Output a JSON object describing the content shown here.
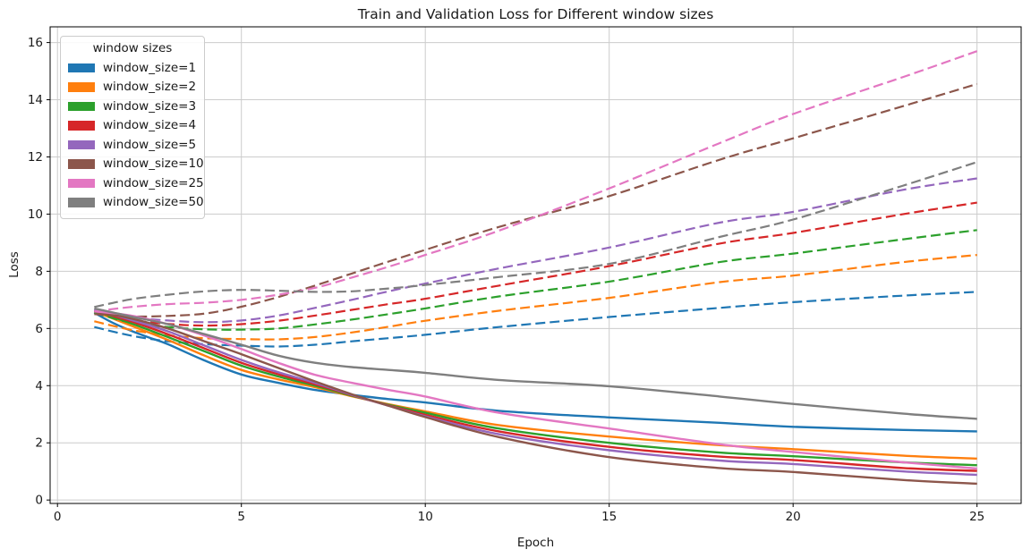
{
  "chart_data": {
    "type": "line",
    "title": "Train and Validation Loss for Different window sizes",
    "xlabel": "Epoch",
    "ylabel": "Loss",
    "xlim": [
      -0.2,
      26.2
    ],
    "ylim": [
      -0.12,
      16.55
    ],
    "xticks": [
      0,
      5,
      10,
      15,
      20,
      25
    ],
    "yticks": [
      0,
      2,
      4,
      6,
      8,
      10,
      12,
      14,
      16
    ],
    "grid": true,
    "grid_color": "#cccccc",
    "legend": {
      "title": "window sizes",
      "position": "upper left",
      "entries": [
        {
          "label": "window_size=1",
          "color": "#1f77b4"
        },
        {
          "label": "window_size=2",
          "color": "#ff7f0e"
        },
        {
          "label": "window_size=3",
          "color": "#2ca02c"
        },
        {
          "label": "window_size=4",
          "color": "#d62728"
        },
        {
          "label": "window_size=5",
          "color": "#9467bd"
        },
        {
          "label": "window_size=10",
          "color": "#8c564b"
        },
        {
          "label": "window_size=25",
          "color": "#e377c2"
        },
        {
          "label": "window_size=50",
          "color": "#7f7f7f"
        }
      ]
    },
    "line_styles": {
      "train": "solid",
      "validation": "dashed"
    },
    "series": [
      {
        "label": "window_size=1",
        "window_size": 1,
        "color": "#1f77b4",
        "train": [
          [
            1,
            6.55
          ],
          [
            1.5,
            6.2
          ],
          [
            2,
            5.92
          ],
          [
            2.5,
            5.68
          ],
          [
            3,
            5.45
          ],
          [
            4,
            4.88
          ],
          [
            5,
            4.39
          ],
          [
            6,
            4.1
          ],
          [
            7,
            3.85
          ],
          [
            8,
            3.68
          ],
          [
            9,
            3.53
          ],
          [
            10,
            3.41
          ],
          [
            12,
            3.12
          ],
          [
            15,
            2.89
          ],
          [
            18,
            2.7
          ],
          [
            20,
            2.56
          ],
          [
            23,
            2.45
          ],
          [
            25,
            2.4
          ]
        ],
        "validation": [
          [
            1,
            6.05
          ],
          [
            2,
            5.75
          ],
          [
            3,
            5.55
          ],
          [
            4,
            5.45
          ],
          [
            5,
            5.4
          ],
          [
            6,
            5.37
          ],
          [
            7,
            5.43
          ],
          [
            8,
            5.55
          ],
          [
            9,
            5.66
          ],
          [
            10,
            5.78
          ],
          [
            12,
            6.05
          ],
          [
            15,
            6.4
          ],
          [
            18,
            6.72
          ],
          [
            20,
            6.92
          ],
          [
            23,
            7.15
          ],
          [
            25,
            7.28
          ]
        ]
      },
      {
        "label": "window_size=2",
        "window_size": 2,
        "color": "#ff7f0e",
        "train": [
          [
            1,
            6.6
          ],
          [
            1.5,
            6.35
          ],
          [
            2,
            6.1
          ],
          [
            3,
            5.6
          ],
          [
            4,
            5.05
          ],
          [
            5,
            4.55
          ],
          [
            6,
            4.22
          ],
          [
            7,
            3.95
          ],
          [
            8,
            3.63
          ],
          [
            9,
            3.35
          ],
          [
            10,
            3.1
          ],
          [
            12,
            2.62
          ],
          [
            15,
            2.22
          ],
          [
            18,
            1.92
          ],
          [
            20,
            1.78
          ],
          [
            23,
            1.55
          ],
          [
            25,
            1.45
          ]
        ],
        "validation": [
          [
            1,
            6.25
          ],
          [
            2,
            5.95
          ],
          [
            3,
            5.76
          ],
          [
            4,
            5.66
          ],
          [
            5,
            5.63
          ],
          [
            6,
            5.62
          ],
          [
            7,
            5.7
          ],
          [
            8,
            5.86
          ],
          [
            9,
            6.06
          ],
          [
            10,
            6.27
          ],
          [
            12,
            6.62
          ],
          [
            15,
            7.07
          ],
          [
            18,
            7.62
          ],
          [
            20,
            7.85
          ],
          [
            23,
            8.32
          ],
          [
            25,
            8.57
          ]
        ]
      },
      {
        "label": "window_size=3",
        "window_size": 3,
        "color": "#2ca02c",
        "train": [
          [
            1,
            6.62
          ],
          [
            2,
            6.18
          ],
          [
            3,
            5.7
          ],
          [
            4,
            5.2
          ],
          [
            5,
            4.7
          ],
          [
            6,
            4.32
          ],
          [
            7,
            4.0
          ],
          [
            8,
            3.65
          ],
          [
            9,
            3.33
          ],
          [
            10,
            3.05
          ],
          [
            12,
            2.5
          ],
          [
            15,
            2.0
          ],
          [
            18,
            1.66
          ],
          [
            20,
            1.53
          ],
          [
            23,
            1.32
          ],
          [
            25,
            1.22
          ]
        ],
        "validation": [
          [
            1,
            6.55
          ],
          [
            2,
            6.2
          ],
          [
            3,
            6.05
          ],
          [
            4,
            5.97
          ],
          [
            5,
            5.96
          ],
          [
            6,
            6.0
          ],
          [
            7,
            6.14
          ],
          [
            8,
            6.31
          ],
          [
            9,
            6.5
          ],
          [
            10,
            6.7
          ],
          [
            12,
            7.12
          ],
          [
            15,
            7.64
          ],
          [
            18,
            8.32
          ],
          [
            20,
            8.62
          ],
          [
            23,
            9.12
          ],
          [
            25,
            9.44
          ]
        ]
      },
      {
        "label": "window_size=4",
        "window_size": 4,
        "color": "#d62728",
        "train": [
          [
            1,
            6.62
          ],
          [
            2,
            6.25
          ],
          [
            3,
            5.8
          ],
          [
            4,
            5.3
          ],
          [
            5,
            4.8
          ],
          [
            6,
            4.4
          ],
          [
            7,
            4.05
          ],
          [
            8,
            3.67
          ],
          [
            9,
            3.31
          ],
          [
            10,
            2.98
          ],
          [
            12,
            2.4
          ],
          [
            15,
            1.86
          ],
          [
            18,
            1.52
          ],
          [
            20,
            1.4
          ],
          [
            23,
            1.12
          ],
          [
            25,
            1.02
          ]
        ],
        "validation": [
          [
            1,
            6.6
          ],
          [
            2,
            6.3
          ],
          [
            3,
            6.16
          ],
          [
            4,
            6.1
          ],
          [
            5,
            6.15
          ],
          [
            6,
            6.27
          ],
          [
            7,
            6.45
          ],
          [
            8,
            6.65
          ],
          [
            9,
            6.85
          ],
          [
            10,
            7.04
          ],
          [
            12,
            7.5
          ],
          [
            15,
            8.18
          ],
          [
            18,
            8.97
          ],
          [
            20,
            9.34
          ],
          [
            23,
            10.0
          ],
          [
            25,
            10.4
          ]
        ]
      },
      {
        "label": "window_size=5",
        "window_size": 5,
        "color": "#9467bd",
        "train": [
          [
            1,
            6.65
          ],
          [
            2,
            6.3
          ],
          [
            3,
            5.9
          ],
          [
            4,
            5.4
          ],
          [
            5,
            4.9
          ],
          [
            6,
            4.47
          ],
          [
            7,
            4.1
          ],
          [
            8,
            3.68
          ],
          [
            9,
            3.3
          ],
          [
            10,
            2.93
          ],
          [
            12,
            2.3
          ],
          [
            15,
            1.74
          ],
          [
            18,
            1.38
          ],
          [
            20,
            1.26
          ],
          [
            23,
            1.0
          ],
          [
            25,
            0.88
          ]
        ],
        "validation": [
          [
            1,
            6.65
          ],
          [
            2,
            6.4
          ],
          [
            3,
            6.28
          ],
          [
            4,
            6.22
          ],
          [
            5,
            6.28
          ],
          [
            6,
            6.45
          ],
          [
            7,
            6.72
          ],
          [
            8,
            7.0
          ],
          [
            9,
            7.3
          ],
          [
            10,
            7.57
          ],
          [
            12,
            8.1
          ],
          [
            15,
            8.83
          ],
          [
            18,
            9.7
          ],
          [
            20,
            10.08
          ],
          [
            23,
            10.85
          ],
          [
            25,
            11.25
          ]
        ]
      },
      {
        "label": "window_size=10",
        "window_size": 10,
        "color": "#8c564b",
        "train": [
          [
            1,
            6.6
          ],
          [
            2,
            6.35
          ],
          [
            3,
            6.0
          ],
          [
            4,
            5.55
          ],
          [
            5,
            5.1
          ],
          [
            6,
            4.62
          ],
          [
            7,
            4.15
          ],
          [
            8,
            3.7
          ],
          [
            9,
            3.3
          ],
          [
            10,
            2.9
          ],
          [
            12,
            2.2
          ],
          [
            15,
            1.5
          ],
          [
            18,
            1.12
          ],
          [
            20,
            0.98
          ],
          [
            23,
            0.7
          ],
          [
            25,
            0.57
          ]
        ],
        "validation": [
          [
            1,
            6.5
          ],
          [
            2,
            6.42
          ],
          [
            3,
            6.44
          ],
          [
            4,
            6.52
          ],
          [
            5,
            6.76
          ],
          [
            6,
            7.1
          ],
          [
            7,
            7.5
          ],
          [
            8,
            7.92
          ],
          [
            9,
            8.34
          ],
          [
            10,
            8.75
          ],
          [
            12,
            9.55
          ],
          [
            15,
            10.63
          ],
          [
            18,
            11.9
          ],
          [
            20,
            12.65
          ],
          [
            23,
            13.78
          ],
          [
            25,
            14.55
          ]
        ]
      },
      {
        "label": "window_size=25",
        "window_size": 25,
        "color": "#e377c2",
        "train": [
          [
            1,
            6.6
          ],
          [
            2,
            6.45
          ],
          [
            3,
            6.15
          ],
          [
            4,
            5.75
          ],
          [
            5,
            5.28
          ],
          [
            6,
            4.8
          ],
          [
            7,
            4.38
          ],
          [
            8,
            4.1
          ],
          [
            9,
            3.85
          ],
          [
            10,
            3.62
          ],
          [
            12,
            3.05
          ],
          [
            15,
            2.5
          ],
          [
            18,
            1.95
          ],
          [
            20,
            1.68
          ],
          [
            23,
            1.32
          ],
          [
            25,
            1.1
          ]
        ],
        "validation": [
          [
            1,
            6.6
          ],
          [
            2,
            6.75
          ],
          [
            3,
            6.85
          ],
          [
            4,
            6.9
          ],
          [
            5,
            7.0
          ],
          [
            6,
            7.18
          ],
          [
            7,
            7.42
          ],
          [
            8,
            7.78
          ],
          [
            9,
            8.16
          ],
          [
            10,
            8.57
          ],
          [
            12,
            9.42
          ],
          [
            15,
            10.9
          ],
          [
            18,
            12.48
          ],
          [
            20,
            13.5
          ],
          [
            23,
            14.8
          ],
          [
            25,
            15.7
          ]
        ]
      },
      {
        "label": "window_size=50",
        "window_size": 50,
        "color": "#7f7f7f",
        "train": [
          [
            1,
            6.7
          ],
          [
            2,
            6.42
          ],
          [
            3,
            6.15
          ],
          [
            4,
            5.8
          ],
          [
            5,
            5.43
          ],
          [
            6,
            5.05
          ],
          [
            7,
            4.8
          ],
          [
            8,
            4.65
          ],
          [
            9,
            4.55
          ],
          [
            10,
            4.45
          ],
          [
            12,
            4.2
          ],
          [
            15,
            3.98
          ],
          [
            18,
            3.62
          ],
          [
            20,
            3.36
          ],
          [
            23,
            3.02
          ],
          [
            25,
            2.84
          ]
        ],
        "validation": [
          [
            1,
            6.75
          ],
          [
            2,
            7.02
          ],
          [
            3,
            7.18
          ],
          [
            4,
            7.3
          ],
          [
            5,
            7.35
          ],
          [
            6,
            7.32
          ],
          [
            7,
            7.28
          ],
          [
            8,
            7.3
          ],
          [
            9,
            7.4
          ],
          [
            10,
            7.52
          ],
          [
            12,
            7.8
          ],
          [
            15,
            8.26
          ],
          [
            18,
            9.2
          ],
          [
            20,
            9.81
          ],
          [
            23,
            11.0
          ],
          [
            25,
            11.82
          ]
        ]
      }
    ]
  }
}
